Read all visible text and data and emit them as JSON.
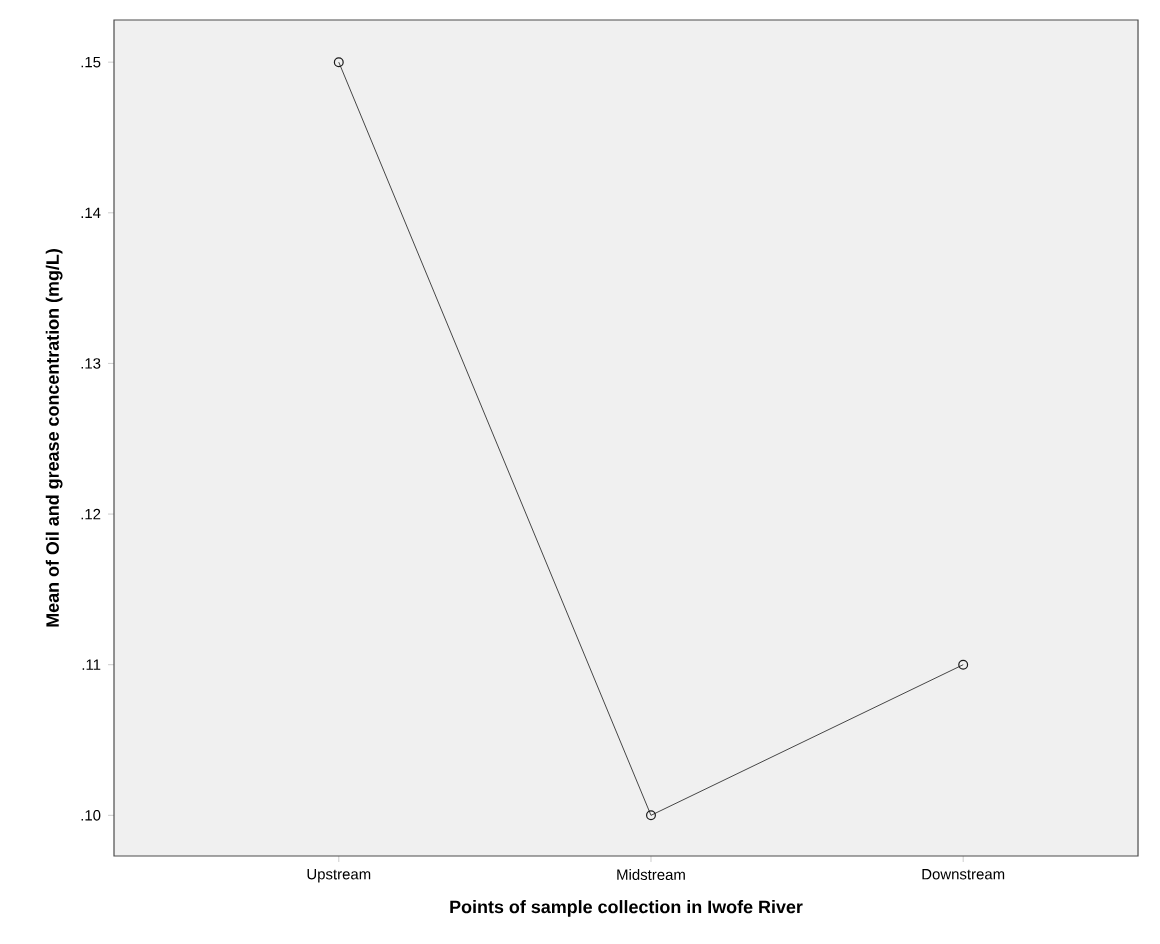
{
  "chart_data": {
    "type": "line",
    "xlabel": "Points of sample collection in Iwofe River",
    "ylabel": "Mean of Oil and grease concentration (mg/L)",
    "categories": [
      "Upstream",
      "Midstream",
      "Downstream"
    ],
    "series": [
      {
        "color": "#1a1a1a",
        "values": [
          0.15,
          0.1,
          0.11
        ]
      }
    ],
    "ylim": [
      0.0973,
      0.1528
    ],
    "yticks": [
      {
        "value": 0.1,
        "label": ".10"
      },
      {
        "value": 0.11,
        "label": ".11"
      },
      {
        "value": 0.12,
        "label": ".12"
      },
      {
        "value": 0.13,
        "label": ".13"
      },
      {
        "value": 0.14,
        "label": ".14"
      },
      {
        "value": 0.15,
        "label": ".15"
      }
    ],
    "grid": false,
    "marker": "circle",
    "line_style": "solid"
  }
}
